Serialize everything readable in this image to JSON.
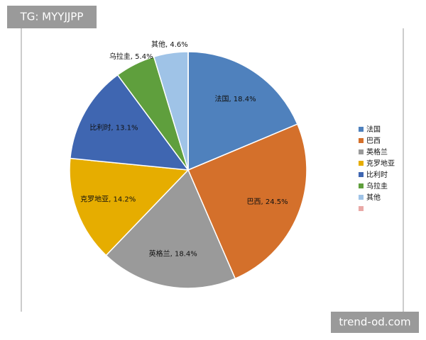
{
  "chart_data": {
    "type": "pie",
    "categories": [
      "法国",
      "巴西",
      "英格兰",
      "克罗地亚",
      "比利时",
      "乌拉圭",
      "其他",
      null
    ],
    "values": [
      18.4,
      24.5,
      18.4,
      14.2,
      13.1,
      5.4,
      4.6,
      0
    ],
    "value_labels": [
      "法国, 18.4%",
      "巴西, 24.5%",
      "英格兰, 18.4%",
      "克罗地亚, 14.2%",
      "比利时, 13.1%",
      "乌拉圭, 5.4%",
      "其他, 4.6%",
      null
    ],
    "colors": [
      "#4f81bd",
      "#d4702b",
      "#9a9a9a",
      "#e6ad00",
      "#3f66b1",
      "#5f9f3d",
      "#9fc3e7",
      "#e9a9a7"
    ],
    "legend": "right",
    "annotations": [
      "TG: MYYJJPP",
      "trend-od.com"
    ]
  }
}
